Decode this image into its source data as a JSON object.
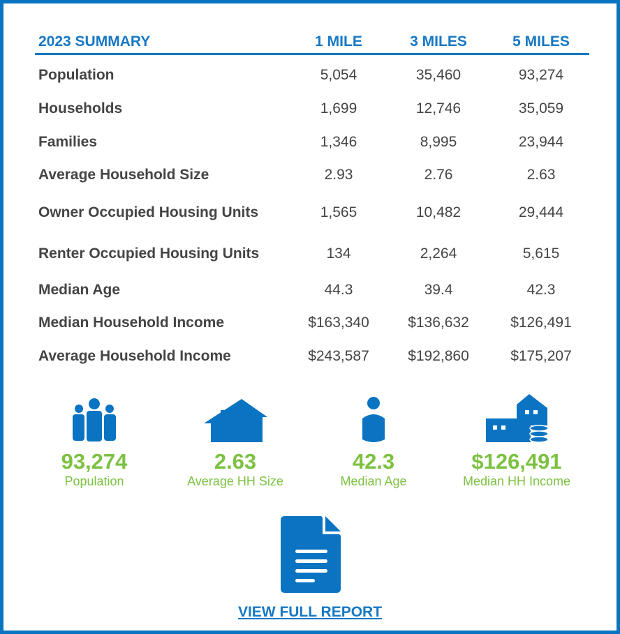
{
  "table": {
    "header": [
      "2023 SUMMARY",
      "1 MILE",
      "3 MILES",
      "5 MILES"
    ],
    "rows": [
      [
        "Population",
        "5,054",
        "35,460",
        "93,274"
      ],
      [
        "Households",
        "1,699",
        "12,746",
        "35,059"
      ],
      [
        "Families",
        "1,346",
        "8,995",
        "23,944"
      ],
      [
        "Average Household Size",
        "2.93",
        "2.76",
        "2.63"
      ],
      [
        "Owner Occupied Housing Units",
        "1,565",
        "10,482",
        "29,444"
      ],
      [
        "Renter Occupied Housing Units",
        "134",
        "2,264",
        "5,615"
      ],
      [
        "Median Age",
        "44.3",
        "39.4",
        "42.3"
      ],
      [
        "Median Household Income",
        "$163,340",
        "$136,632",
        "$126,491"
      ],
      [
        "Average Household Income",
        "$243,587",
        "$192,860",
        "$175,207"
      ]
    ]
  },
  "stats": [
    {
      "value": "93,274",
      "label": "Population"
    },
    {
      "value": "2.63",
      "label": "Average HH Size"
    },
    {
      "value": "42.3",
      "label": "Median Age"
    },
    {
      "value": "$126,491",
      "label": "Median HH Income"
    }
  ],
  "link": "VIEW FULL REPORT"
}
